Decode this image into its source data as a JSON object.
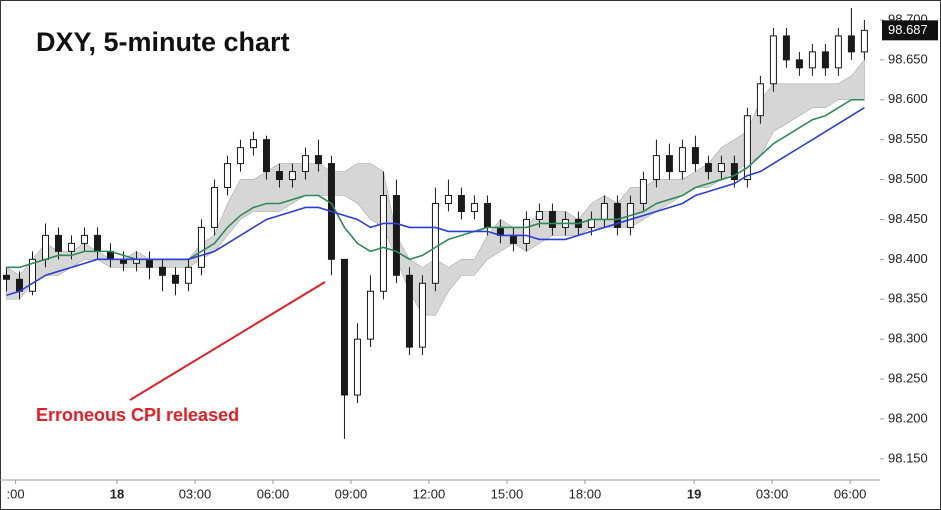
{
  "chart_data": {
    "type": "candlestick",
    "title": "DXY, 5-minute chart",
    "annotation": "Erroneous CPI released",
    "annotation_color": "#e31e24",
    "candle_color": "#1a1a1a",
    "x": [
      -4.25,
      -3.75,
      -3.25,
      -2.75,
      -2.25,
      -1.75,
      -1.25,
      -0.75,
      -0.25,
      0.25,
      0.75,
      1.25,
      1.75,
      2.25,
      2.75,
      3.25,
      3.75,
      4.25,
      4.75,
      5.25,
      5.75,
      6.25,
      6.75,
      7.25,
      7.75,
      8.25,
      8.75,
      9.25,
      9.75,
      10.25,
      10.75,
      11.25,
      11.75,
      12.25,
      12.75,
      13.25,
      13.75,
      14.25,
      14.75,
      15.25,
      15.75,
      16.25,
      16.75,
      17.25,
      17.75,
      18.25,
      18.75,
      19.25,
      19.75,
      20.25,
      20.75,
      21.25,
      21.75,
      22.25,
      22.75,
      23.25,
      23.75,
      24.25,
      24.75,
      25.25,
      25.75,
      26.25,
      26.75,
      27.25,
      27.75,
      28.25,
      28.75
    ],
    "open": [
      98.38,
      98.375,
      98.36,
      98.4,
      98.43,
      98.41,
      98.42,
      98.43,
      98.41,
      98.4,
      98.395,
      98.4,
      98.39,
      98.38,
      98.37,
      98.39,
      98.44,
      98.49,
      98.52,
      98.54,
      98.55,
      98.51,
      98.5,
      98.51,
      98.53,
      98.52,
      98.4,
      98.23,
      98.3,
      98.36,
      98.48,
      98.38,
      98.29,
      98.37,
      98.47,
      98.48,
      98.46,
      98.47,
      98.44,
      98.43,
      98.42,
      98.45,
      98.46,
      98.44,
      98.45,
      98.44,
      98.45,
      98.47,
      98.44,
      98.47,
      98.5,
      98.53,
      98.51,
      98.54,
      98.52,
      98.51,
      98.52,
      98.5,
      98.58,
      98.62,
      98.68,
      98.65,
      98.64,
      98.66,
      98.64,
      98.68,
      98.66
    ],
    "high": [
      98.39,
      98.385,
      98.41,
      98.445,
      98.44,
      98.43,
      98.44,
      98.44,
      98.42,
      98.41,
      98.41,
      98.41,
      98.4,
      98.39,
      98.4,
      98.45,
      98.5,
      98.53,
      98.55,
      98.56,
      98.555,
      98.52,
      98.52,
      98.54,
      98.55,
      98.53,
      98.4,
      98.32,
      98.38,
      98.51,
      98.5,
      98.39,
      98.38,
      98.49,
      98.5,
      98.49,
      98.48,
      98.48,
      98.45,
      98.44,
      98.46,
      98.47,
      98.47,
      98.46,
      98.46,
      98.46,
      98.48,
      98.48,
      98.48,
      98.51,
      98.55,
      98.545,
      98.55,
      98.555,
      98.53,
      98.53,
      98.53,
      98.59,
      98.63,
      98.69,
      98.69,
      98.66,
      98.67,
      98.67,
      98.69,
      98.715,
      98.7
    ],
    "low": [
      98.36,
      98.35,
      98.355,
      98.39,
      98.4,
      98.4,
      98.41,
      98.4,
      98.39,
      98.385,
      98.385,
      98.375,
      98.36,
      98.355,
      98.36,
      98.38,
      98.43,
      98.48,
      98.51,
      98.53,
      98.5,
      98.49,
      98.49,
      98.5,
      98.51,
      98.38,
      98.175,
      98.22,
      98.29,
      98.35,
      98.37,
      98.28,
      98.28,
      98.36,
      98.46,
      98.45,
      98.45,
      98.43,
      98.42,
      98.41,
      98.41,
      98.44,
      98.43,
      98.43,
      98.43,
      98.43,
      98.44,
      98.43,
      98.43,
      98.46,
      98.49,
      98.5,
      98.5,
      98.51,
      98.5,
      98.5,
      98.49,
      98.49,
      98.57,
      98.61,
      98.64,
      98.63,
      98.63,
      98.63,
      98.63,
      98.65,
      98.65
    ],
    "close": [
      98.375,
      98.36,
      98.4,
      98.43,
      98.41,
      98.42,
      98.43,
      98.41,
      98.4,
      98.395,
      98.4,
      98.39,
      98.38,
      98.37,
      98.39,
      98.44,
      98.49,
      98.52,
      98.54,
      98.55,
      98.51,
      98.5,
      98.51,
      98.53,
      98.52,
      98.4,
      98.23,
      98.3,
      98.36,
      98.48,
      98.38,
      98.29,
      98.37,
      98.47,
      98.48,
      98.46,
      98.47,
      98.44,
      98.43,
      98.42,
      98.45,
      98.46,
      98.44,
      98.45,
      98.44,
      98.45,
      98.47,
      98.44,
      98.47,
      98.5,
      98.53,
      98.51,
      98.54,
      98.52,
      98.51,
      98.52,
      98.5,
      98.58,
      98.62,
      98.68,
      98.65,
      98.64,
      98.66,
      98.64,
      98.68,
      98.66,
      98.687
    ],
    "moving_averages": [
      {
        "color": "#2e8b57",
        "values": [
          98.39,
          98.39,
          98.395,
          98.4,
          98.405,
          98.405,
          98.41,
          98.41,
          98.41,
          98.405,
          98.4,
          98.4,
          98.4,
          98.4,
          98.4,
          98.41,
          98.42,
          98.44,
          98.455,
          98.465,
          98.47,
          98.47,
          98.475,
          98.48,
          98.48,
          98.47,
          98.44,
          98.42,
          98.41,
          98.415,
          98.41,
          98.4,
          98.405,
          98.415,
          98.425,
          98.43,
          98.435,
          98.44,
          98.44,
          98.44,
          98.44,
          98.445,
          98.445,
          98.445,
          98.445,
          98.45,
          98.45,
          98.45,
          98.455,
          98.46,
          98.47,
          98.475,
          98.48,
          98.49,
          98.495,
          98.5,
          98.505,
          98.515,
          98.53,
          98.545,
          98.555,
          98.565,
          98.575,
          98.58,
          98.59,
          98.6,
          98.6
        ]
      },
      {
        "color": "#2b3fd6",
        "values": [
          98.355,
          98.36,
          98.37,
          98.38,
          98.385,
          98.39,
          98.395,
          98.4,
          98.4,
          98.4,
          98.4,
          98.4,
          98.4,
          98.4,
          98.4,
          98.405,
          98.41,
          98.42,
          98.43,
          98.44,
          98.45,
          98.455,
          98.46,
          98.465,
          98.465,
          98.46,
          98.455,
          98.45,
          98.44,
          98.445,
          98.445,
          98.44,
          98.44,
          98.44,
          98.435,
          98.435,
          98.435,
          98.435,
          98.43,
          98.43,
          98.43,
          98.425,
          98.425,
          98.425,
          98.43,
          98.435,
          98.44,
          98.445,
          98.45,
          98.455,
          98.46,
          98.465,
          98.47,
          98.48,
          98.485,
          98.49,
          98.495,
          98.505,
          98.51,
          98.52,
          98.53,
          98.54,
          98.55,
          98.56,
          98.57,
          98.58,
          98.59
        ]
      }
    ],
    "cloud": {
      "color": "#d6d6d6",
      "upper": [
        98.39,
        98.38,
        98.4,
        98.42,
        98.41,
        98.41,
        98.42,
        98.41,
        98.4,
        98.4,
        98.41,
        98.4,
        98.4,
        98.4,
        98.4,
        98.42,
        98.43,
        98.47,
        98.5,
        98.5,
        98.51,
        98.52,
        98.52,
        98.52,
        98.52,
        98.51,
        98.51,
        98.52,
        98.52,
        98.51,
        98.43,
        98.4,
        98.39,
        98.4,
        98.39,
        98.4,
        98.4,
        98.43,
        98.45,
        98.44,
        98.44,
        98.46,
        98.46,
        98.46,
        98.45,
        98.47,
        98.48,
        98.47,
        98.49,
        98.49,
        98.5,
        98.5,
        98.5,
        98.51,
        98.52,
        98.54,
        98.55,
        98.56,
        98.6,
        98.62,
        98.62,
        98.62,
        98.62,
        98.62,
        98.62,
        98.63,
        98.65
      ],
      "lower": [
        98.35,
        98.35,
        98.37,
        98.38,
        98.38,
        98.39,
        98.4,
        98.4,
        98.39,
        98.39,
        98.39,
        98.39,
        98.39,
        98.39,
        98.39,
        98.4,
        98.41,
        98.43,
        98.45,
        98.46,
        98.46,
        98.46,
        98.47,
        98.48,
        98.48,
        98.48,
        98.48,
        98.47,
        98.45,
        98.44,
        98.4,
        98.36,
        98.33,
        98.33,
        98.36,
        98.38,
        98.38,
        98.4,
        98.41,
        98.42,
        98.41,
        98.42,
        98.43,
        98.43,
        98.43,
        98.44,
        98.44,
        98.44,
        98.44,
        98.45,
        98.46,
        98.47,
        98.48,
        98.49,
        98.49,
        98.5,
        98.51,
        98.52,
        98.53,
        98.56,
        98.57,
        98.58,
        98.59,
        98.59,
        98.6,
        98.6,
        98.6
      ]
    },
    "last_price": 98.687,
    "xlim": [
      -4.5,
      29.35
    ],
    "xticks": [
      {
        "value": -3.9,
        "label": ":00"
      },
      {
        "value": 0,
        "label": "18"
      },
      {
        "value": 3,
        "label": "03:00"
      },
      {
        "value": 6,
        "label": "06:00"
      },
      {
        "value": 9,
        "label": "09:00"
      },
      {
        "value": 12,
        "label": "12:00"
      },
      {
        "value": 15,
        "label": "15:00"
      },
      {
        "value": 18,
        "label": "18:00"
      },
      {
        "value": 22.2,
        "label": "19"
      },
      {
        "value": 25.2,
        "label": "03:00"
      },
      {
        "value": 28.2,
        "label": "06:00"
      }
    ],
    "ylim": [
      98.126,
      98.725
    ],
    "yticks": [
      {
        "value": 98.15,
        "label": "98.150"
      },
      {
        "value": 98.2,
        "label": "98.200"
      },
      {
        "value": 98.25,
        "label": "98.250"
      },
      {
        "value": 98.3,
        "label": "98.300"
      },
      {
        "value": 98.35,
        "label": "98.350"
      },
      {
        "value": 98.4,
        "label": "98.400"
      },
      {
        "value": 98.45,
        "label": "98.450"
      },
      {
        "value": 98.5,
        "label": "98.500"
      },
      {
        "value": 98.55,
        "label": "98.550"
      },
      {
        "value": 98.6,
        "label": "98.600"
      },
      {
        "value": 98.65,
        "label": "98.650"
      },
      {
        "value": 98.7,
        "label": "98.700"
      }
    ]
  }
}
